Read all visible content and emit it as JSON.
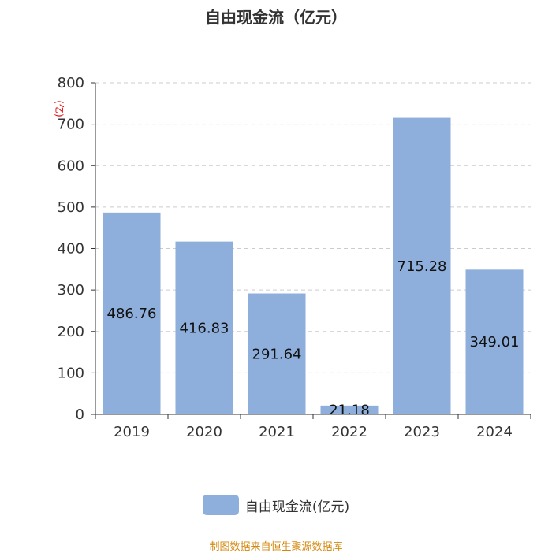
{
  "colors": {
    "bar": "#8eaedb",
    "source": "#d4870c",
    "unit": "#e60000"
  },
  "legend": {
    "label": "自由现金流(亿元)"
  },
  "source": {
    "text": "制图数据来自恒生聚源数据库"
  },
  "chart_data": {
    "type": "bar",
    "title": "自由现金流（亿元）",
    "ylabel": "(亿)",
    "categories": [
      "2019",
      "2020",
      "2021",
      "2022",
      "2023",
      "2024"
    ],
    "series": [
      {
        "name": "自由现金流(亿元)",
        "values": [
          486.76,
          416.83,
          291.64,
          21.18,
          715.28,
          349.01
        ]
      }
    ],
    "data_labels": [
      "486.76",
      "416.83",
      "291.64",
      "21.18",
      "715.28",
      "349.01"
    ],
    "ylim": [
      0,
      800
    ],
    "yticks": [
      0,
      100,
      200,
      300,
      400,
      500,
      600,
      700,
      800
    ],
    "grid": true,
    "legend_position": "bottom"
  }
}
